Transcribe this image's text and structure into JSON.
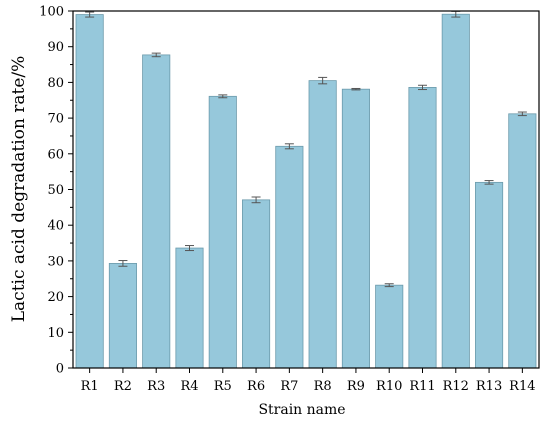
{
  "chart_data": {
    "type": "bar",
    "xlabel": "Strain name",
    "ylabel": "Lactic acid degradation rate/%",
    "ylim": [
      0,
      100
    ],
    "yticks": [
      0,
      10,
      20,
      30,
      40,
      50,
      60,
      70,
      80,
      90,
      100
    ],
    "categories": [
      "R1",
      "R2",
      "R3",
      "R4",
      "R5",
      "R6",
      "R7",
      "R8",
      "R9",
      "R10",
      "R11",
      "R12",
      "R13",
      "R14"
    ],
    "values": [
      99.0,
      29.3,
      87.7,
      33.6,
      76.1,
      47.1,
      62.1,
      80.5,
      78.1,
      23.2,
      78.6,
      99.1,
      52.0,
      71.2
    ],
    "errors": [
      0.7,
      0.8,
      0.5,
      0.7,
      0.4,
      0.8,
      0.7,
      0.9,
      0.2,
      0.4,
      0.6,
      0.8,
      0.5,
      0.5
    ],
    "grid": false,
    "bar_color": "#96c8db",
    "bar_edge_color": "#6b9aab",
    "error_bar_color": "#555555"
  }
}
